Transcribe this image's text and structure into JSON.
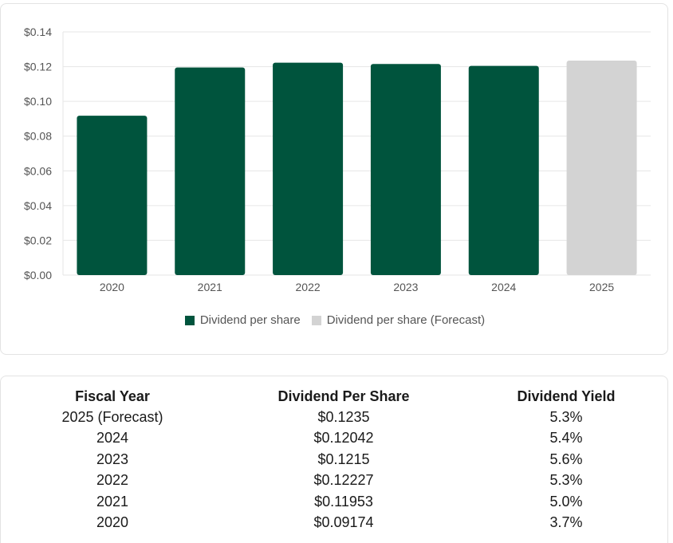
{
  "colors": {
    "actual": "#00543d",
    "forecast": "#d3d3d3",
    "grid": "#e6e6e6"
  },
  "chart_data": {
    "type": "bar",
    "categories": [
      "2020",
      "2021",
      "2022",
      "2023",
      "2024",
      "2025"
    ],
    "series": [
      {
        "name": "Dividend per share",
        "values": [
          0.09174,
          0.11953,
          0.12227,
          0.1215,
          0.12042,
          null
        ]
      },
      {
        "name": "Dividend per share (Forecast)",
        "values": [
          null,
          null,
          null,
          null,
          null,
          0.1235
        ]
      }
    ],
    "ylim": [
      0,
      0.14
    ],
    "yticks": [
      0,
      0.02,
      0.04,
      0.06,
      0.08,
      0.1,
      0.12,
      0.14
    ],
    "ytick_labels": [
      "$0.00",
      "$0.02",
      "$0.04",
      "$0.06",
      "$0.08",
      "$0.10",
      "$0.12",
      "$0.14"
    ],
    "grid": true,
    "legend_position": "bottom",
    "title": "",
    "xlabel": "",
    "ylabel": ""
  },
  "legend": {
    "actual_label": "Dividend per share",
    "forecast_label": "Dividend per share (Forecast)"
  },
  "table": {
    "headers": [
      "Fiscal Year",
      "Dividend Per Share",
      "Dividend Yield"
    ],
    "rows": [
      [
        "2025 (Forecast)",
        "$0.1235",
        "5.3%"
      ],
      [
        "2024",
        "$0.12042",
        "5.4%"
      ],
      [
        "2023",
        "$0.1215",
        "5.6%"
      ],
      [
        "2022",
        "$0.12227",
        "5.3%"
      ],
      [
        "2021",
        "$0.11953",
        "5.0%"
      ],
      [
        "2020",
        "$0.09174",
        "3.7%"
      ]
    ]
  }
}
